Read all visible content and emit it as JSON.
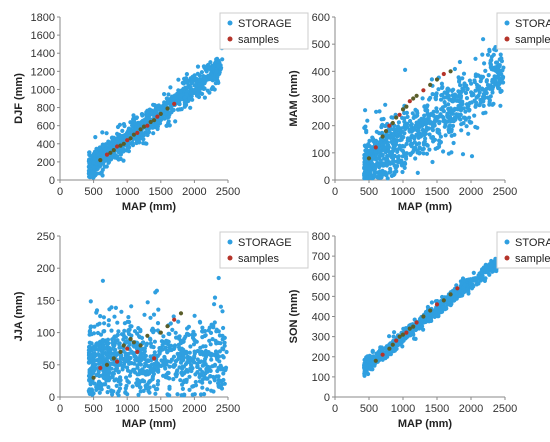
{
  "colors": {
    "storage": "#2f9fe0",
    "samples": "#5a5e2a",
    "samples_alt": "#b5342a",
    "axis": "#8a8a8a"
  },
  "chart_data": [
    {
      "type": "scatter",
      "panel": "top-left",
      "xlabel": "MAP (mm)",
      "ylabel": "DJF (mm)",
      "xlim": [
        0,
        2500
      ],
      "ylim": [
        0,
        1800
      ],
      "xticks": [
        "0",
        "500",
        "1000",
        "1500",
        "2000",
        "2500"
      ],
      "yticks": [
        "0",
        "200",
        "400",
        "600",
        "800",
        "1000",
        "1200",
        "1400",
        "1600",
        "1800"
      ],
      "legend_position": "top-right",
      "series": [
        {
          "name": "STORAGE",
          "trend": {
            "x": [
              450,
              2400
            ],
            "y": [
              150,
              1260
            ]
          },
          "spread": 70,
          "count": 900,
          "x_range": [
            430,
            2420
          ]
        },
        {
          "name": "samples",
          "points": [
            [
              600,
              220
            ],
            [
              700,
              280
            ],
            [
              750,
              300
            ],
            [
              800,
              330
            ],
            [
              850,
              370
            ],
            [
              900,
              380
            ],
            [
              950,
              400
            ],
            [
              1000,
              440
            ],
            [
              1050,
              460
            ],
            [
              1100,
              500
            ],
            [
              1150,
              520
            ],
            [
              1200,
              560
            ],
            [
              1250,
              590
            ],
            [
              1300,
              600
            ],
            [
              1350,
              640
            ],
            [
              1400,
              660
            ],
            [
              1450,
              700
            ],
            [
              1500,
              730
            ],
            [
              1600,
              790
            ],
            [
              1700,
              840
            ]
          ]
        }
      ]
    },
    {
      "type": "scatter",
      "panel": "top-right",
      "xlabel": "MAP (mm)",
      "ylabel": "MAM (mm)",
      "xlim": [
        0,
        2500
      ],
      "ylim": [
        0,
        600
      ],
      "xticks": [
        "0",
        "500",
        "1000",
        "1500",
        "2000",
        "2500"
      ],
      "yticks": [
        "0",
        "100",
        "200",
        "300",
        "400",
        "500",
        "600"
      ],
      "legend_position": "top-right",
      "series": [
        {
          "name": "STORAGE",
          "trend": {
            "x": [
              450,
              2450
            ],
            "y": [
              60,
              380
            ]
          },
          "spread": 55,
          "count": 900,
          "x_range": [
            430,
            2480
          ]
        },
        {
          "name": "samples",
          "points": [
            [
              500,
              80
            ],
            [
              600,
              120
            ],
            [
              700,
              160
            ],
            [
              750,
              180
            ],
            [
              800,
              200
            ],
            [
              850,
              210
            ],
            [
              900,
              230
            ],
            [
              950,
              240
            ],
            [
              1000,
              260
            ],
            [
              1050,
              270
            ],
            [
              1100,
              290
            ],
            [
              1150,
              300
            ],
            [
              1200,
              310
            ],
            [
              1300,
              330
            ],
            [
              1400,
              350
            ],
            [
              1500,
              370
            ],
            [
              1600,
              390
            ],
            [
              1700,
              400
            ]
          ]
        }
      ]
    },
    {
      "type": "scatter",
      "panel": "bottom-left",
      "xlabel": "MAP (mm)",
      "ylabel": "JJA (mm)",
      "xlim": [
        0,
        2500
      ],
      "ylim": [
        0,
        250
      ],
      "xticks": [
        "0",
        "500",
        "1000",
        "1500",
        "2000",
        "2500"
      ],
      "yticks": [
        "0",
        "50",
        "100",
        "150",
        "200",
        "250"
      ],
      "legend_position": "top-right",
      "series": [
        {
          "name": "STORAGE",
          "trend": {
            "x": [
              450,
              2450
            ],
            "y": [
              55,
              65
            ]
          },
          "spread": 28,
          "count": 900,
          "x_range": [
            430,
            2480
          ]
        },
        {
          "name": "samples",
          "points": [
            [
              500,
              30
            ],
            [
              600,
              45
            ],
            [
              700,
              50
            ],
            [
              800,
              60
            ],
            [
              850,
              55
            ],
            [
              900,
              70
            ],
            [
              950,
              80
            ],
            [
              1000,
              75
            ],
            [
              1050,
              90
            ],
            [
              1100,
              85
            ],
            [
              1150,
              70
            ],
            [
              1200,
              80
            ],
            [
              1300,
              95
            ],
            [
              1400,
              60
            ],
            [
              1500,
              100
            ],
            [
              1600,
              110
            ],
            [
              1700,
              120
            ],
            [
              1800,
              130
            ]
          ]
        }
      ]
    },
    {
      "type": "scatter",
      "panel": "bottom-right",
      "xlabel": "MAP (mm)",
      "ylabel": "SON (mm)",
      "xlim": [
        0,
        2500
      ],
      "ylim": [
        0,
        800
      ],
      "xticks": [
        "0",
        "500",
        "1000",
        "1500",
        "2000",
        "2500"
      ],
      "yticks": [
        "0",
        "100",
        "200",
        "300",
        "400",
        "500",
        "600",
        "700",
        "800"
      ],
      "legend_position": "top-right",
      "series": [
        {
          "name": "STORAGE",
          "trend": {
            "x": [
              450,
              2350
            ],
            "y": [
              150,
              660
            ]
          },
          "spread": 16,
          "count": 700,
          "x_range": [
            430,
            2380
          ]
        },
        {
          "name": "samples",
          "points": [
            [
              600,
              180
            ],
            [
              700,
              210
            ],
            [
              800,
              240
            ],
            [
              850,
              260
            ],
            [
              900,
              280
            ],
            [
              950,
              300
            ],
            [
              1000,
              310
            ],
            [
              1050,
              320
            ],
            [
              1100,
              340
            ],
            [
              1150,
              350
            ],
            [
              1200,
              370
            ],
            [
              1300,
              400
            ],
            [
              1400,
              430
            ],
            [
              1500,
              460
            ],
            [
              1600,
              480
            ],
            [
              1700,
              510
            ],
            [
              1800,
              540
            ]
          ]
        }
      ]
    }
  ]
}
